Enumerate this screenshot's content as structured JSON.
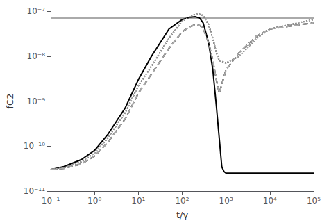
{
  "chart_data": {
    "type": "line",
    "xlabel": "t/γ",
    "ylabel": "fC2",
    "log": true,
    "grid": false,
    "xlim": [
      0.1,
      100000.0
    ],
    "ylim": [
      1e-11,
      1e-07
    ],
    "xticks": [
      {
        "value": 0.1,
        "label": "10⁻¹"
      },
      {
        "value": 1,
        "label": "10⁰"
      },
      {
        "value": 10,
        "label": "10¹"
      },
      {
        "value": 100,
        "label": "10²"
      },
      {
        "value": 1000,
        "label": "10³"
      },
      {
        "value": 10000,
        "label": "10⁴"
      },
      {
        "value": 100000,
        "label": "10⁵"
      }
    ],
    "yticks": [
      {
        "value": 1e-11,
        "label": "10⁻¹¹"
      },
      {
        "value": 1e-10,
        "label": "10⁻¹⁰"
      },
      {
        "value": 1e-09,
        "label": "10⁻⁹"
      },
      {
        "value": 1e-08,
        "label": "10⁻⁸"
      },
      {
        "value": 1e-07,
        "label": "10⁻⁷"
      }
    ],
    "series": [
      {
        "color": "#aaaaaa",
        "line_style": "solid",
        "x": [
          0.1,
          100000
        ],
        "values": [
          7e-08,
          7e-08
        ]
      },
      {
        "color": "#000000",
        "line_style": "solid",
        "x": [
          0.1,
          0.2,
          0.5,
          1,
          2,
          5,
          10,
          20,
          50,
          100,
          150,
          200,
          250,
          300,
          400,
          500,
          600,
          700,
          800,
          900,
          1000,
          100000
        ],
        "values": [
          3e-11,
          3.5e-11,
          5e-11,
          8e-11,
          1.8e-10,
          7e-10,
          3e-09,
          1e-08,
          4e-08,
          6.5e-08,
          7.3e-08,
          7.5e-08,
          7e-08,
          5.5e-08,
          2e-08,
          5e-09,
          8e-10,
          1.5e-10,
          3.5e-11,
          2.7e-11,
          2.5e-11,
          2.5e-11
        ]
      },
      {
        "color": "#000000",
        "line_style": "dotted",
        "x": [
          0.1,
          0.2,
          0.5,
          1,
          2,
          5,
          10,
          20,
          50,
          100,
          150,
          200,
          250,
          300,
          400,
          500,
          600,
          700,
          1000,
          2000,
          5000,
          10000,
          100000
        ],
        "values": [
          3e-11,
          3.3e-11,
          4.5e-11,
          7e-11,
          1.5e-10,
          5.5e-10,
          2.2e-09,
          6e-09,
          2.5e-08,
          6e-08,
          7.5e-08,
          8.5e-08,
          8.5e-08,
          8e-08,
          5e-08,
          2.5e-08,
          1.2e-08,
          8e-09,
          7e-09,
          1e-08,
          2.5e-08,
          4e-08,
          6.5e-08
        ]
      },
      {
        "color": "#000000",
        "line_style": "dashed",
        "x": [
          0.1,
          0.2,
          0.5,
          1,
          2,
          5,
          10,
          20,
          50,
          100,
          150,
          200,
          250,
          300,
          400,
          500,
          600,
          700,
          1000,
          2000,
          5000,
          10000,
          100000
        ],
        "values": [
          3e-11,
          3.2e-11,
          4e-11,
          6e-11,
          1.2e-10,
          4e-10,
          1.5e-09,
          4e-09,
          1.5e-08,
          3.5e-08,
          4.5e-08,
          5e-08,
          4.8e-08,
          4.2e-08,
          2e-08,
          8e-09,
          3e-09,
          1.5e-09,
          5e-09,
          1.2e-08,
          2.8e-08,
          4e-08,
          5.5e-08
        ]
      },
      {
        "color": "#aaaaaa",
        "line_style": "dotted",
        "x": [
          0.1,
          0.2,
          0.5,
          1,
          2,
          5,
          10,
          20,
          50,
          100,
          150,
          200,
          250,
          300,
          400,
          500,
          600,
          700,
          1000,
          2000,
          5000,
          10000,
          100000
        ],
        "values": [
          3e-11,
          3.3e-11,
          4.5e-11,
          7e-11,
          1.5e-10,
          5.5e-10,
          2.2e-09,
          6e-09,
          2.5e-08,
          6e-08,
          7.5e-08,
          8.5e-08,
          8.5e-08,
          8e-08,
          5e-08,
          2.5e-08,
          1.2e-08,
          8e-09,
          7e-09,
          1e-08,
          2.5e-08,
          4e-08,
          6.5e-08
        ]
      },
      {
        "color": "#aaaaaa",
        "line_style": "dashed",
        "x": [
          0.1,
          0.2,
          0.5,
          1,
          2,
          5,
          10,
          20,
          50,
          100,
          150,
          200,
          250,
          300,
          400,
          500,
          600,
          700,
          1000,
          2000,
          5000,
          10000,
          100000
        ],
        "values": [
          3e-11,
          3.2e-11,
          4e-11,
          6e-11,
          1.2e-10,
          4e-10,
          1.5e-09,
          4e-09,
          1.5e-08,
          3.5e-08,
          4.5e-08,
          5e-08,
          4.8e-08,
          4.2e-08,
          2e-08,
          8e-09,
          3e-09,
          1.5e-09,
          5e-09,
          1.2e-08,
          2.8e-08,
          4e-08,
          5.5e-08
        ]
      }
    ]
  }
}
